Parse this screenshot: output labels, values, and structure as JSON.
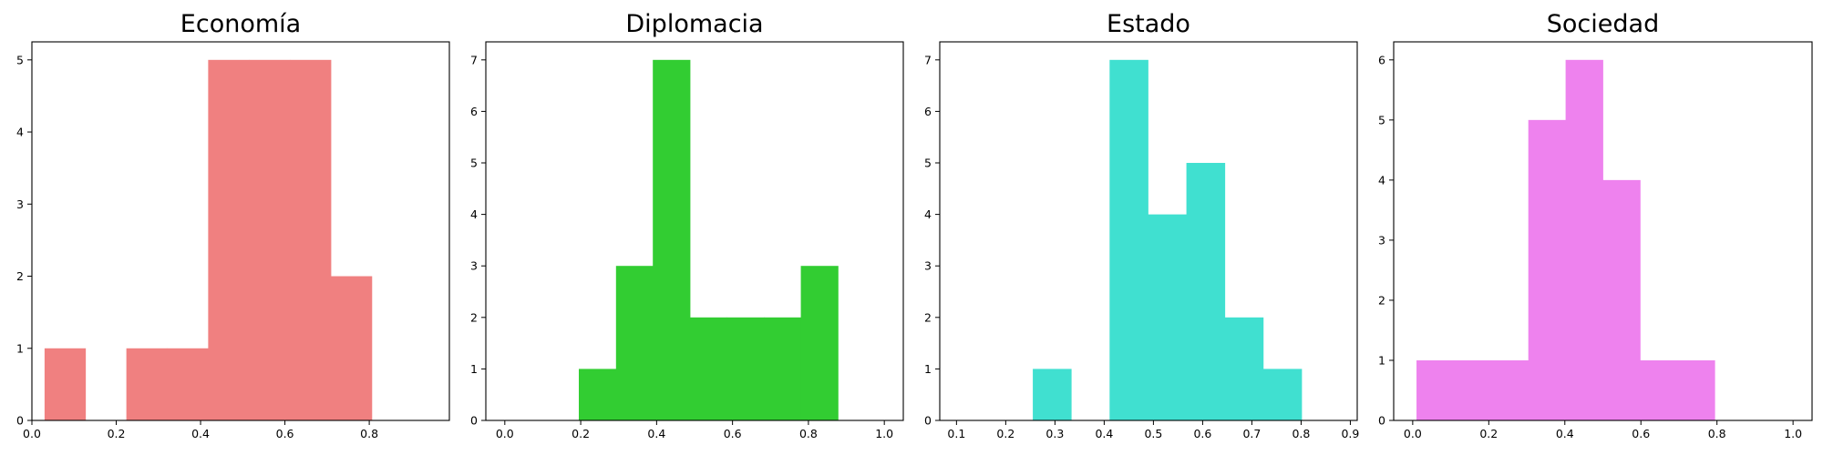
{
  "chart_data": [
    {
      "type": "histogram",
      "title": "Economía",
      "color": "#F08080",
      "xlim": [
        0.0,
        0.99
      ],
      "ylim": [
        0,
        5.25
      ],
      "xticks": [
        0.0,
        0.2,
        0.4,
        0.6,
        0.8
      ],
      "yticks": [
        0,
        1,
        2,
        3,
        4,
        5
      ],
      "bins": [
        {
          "x0": 0.03,
          "x1": 0.127,
          "count": 1
        },
        {
          "x0": 0.127,
          "x1": 0.224,
          "count": 0
        },
        {
          "x0": 0.224,
          "x1": 0.321,
          "count": 1
        },
        {
          "x0": 0.321,
          "x1": 0.418,
          "count": 1
        },
        {
          "x0": 0.418,
          "x1": 0.515,
          "count": 5
        },
        {
          "x0": 0.515,
          "x1": 0.612,
          "count": 5
        },
        {
          "x0": 0.612,
          "x1": 0.709,
          "count": 5
        },
        {
          "x0": 0.709,
          "x1": 0.806,
          "count": 2
        }
      ]
    },
    {
      "type": "histogram",
      "title": "Diplomacia",
      "color": "#32CD32",
      "xlim": [
        -0.05,
        1.05
      ],
      "ylim": [
        0,
        7.35
      ],
      "xticks": [
        0.0,
        0.2,
        0.4,
        0.6,
        0.8,
        1.0
      ],
      "yticks": [
        0,
        1,
        2,
        3,
        4,
        5,
        6,
        7
      ],
      "bins": [
        {
          "x0": 0.195,
          "x1": 0.293,
          "count": 1
        },
        {
          "x0": 0.293,
          "x1": 0.39,
          "count": 3
        },
        {
          "x0": 0.39,
          "x1": 0.488,
          "count": 7
        },
        {
          "x0": 0.488,
          "x1": 0.585,
          "count": 2
        },
        {
          "x0": 0.585,
          "x1": 0.683,
          "count": 2
        },
        {
          "x0": 0.683,
          "x1": 0.78,
          "count": 2
        },
        {
          "x0": 0.78,
          "x1": 0.878,
          "count": 3
        }
      ]
    },
    {
      "type": "histogram",
      "title": "Estado",
      "color": "#40E0D0",
      "xlim": [
        0.066,
        0.914
      ],
      "ylim": [
        0,
        7.35
      ],
      "xticks": [
        0.1,
        0.2,
        0.3,
        0.4,
        0.5,
        0.6,
        0.7,
        0.8,
        0.9
      ],
      "yticks": [
        0,
        1,
        2,
        3,
        4,
        5,
        6,
        7
      ],
      "bins": [
        {
          "x0": 0.255,
          "x1": 0.333,
          "count": 1
        },
        {
          "x0": 0.333,
          "x1": 0.411,
          "count": 0
        },
        {
          "x0": 0.411,
          "x1": 0.489,
          "count": 7
        },
        {
          "x0": 0.489,
          "x1": 0.567,
          "count": 4
        },
        {
          "x0": 0.567,
          "x1": 0.645,
          "count": 5
        },
        {
          "x0": 0.645,
          "x1": 0.723,
          "count": 2
        },
        {
          "x0": 0.723,
          "x1": 0.801,
          "count": 1
        }
      ]
    },
    {
      "type": "histogram",
      "title": "Sociedad",
      "color": "#EE82EE",
      "xlim": [
        -0.05,
        1.05
      ],
      "ylim": [
        0,
        6.3
      ],
      "xticks": [
        0.0,
        0.2,
        0.4,
        0.6,
        0.8,
        1.0
      ],
      "yticks": [
        0,
        1,
        2,
        3,
        4,
        5,
        6
      ],
      "bins": [
        {
          "x0": 0.01,
          "x1": 0.108,
          "count": 1
        },
        {
          "x0": 0.108,
          "x1": 0.206,
          "count": 1
        },
        {
          "x0": 0.206,
          "x1": 0.304,
          "count": 1
        },
        {
          "x0": 0.304,
          "x1": 0.402,
          "count": 5
        },
        {
          "x0": 0.402,
          "x1": 0.5,
          "count": 6
        },
        {
          "x0": 0.5,
          "x1": 0.598,
          "count": 4
        },
        {
          "x0": 0.598,
          "x1": 0.696,
          "count": 1
        },
        {
          "x0": 0.696,
          "x1": 0.794,
          "count": 1
        }
      ]
    }
  ]
}
